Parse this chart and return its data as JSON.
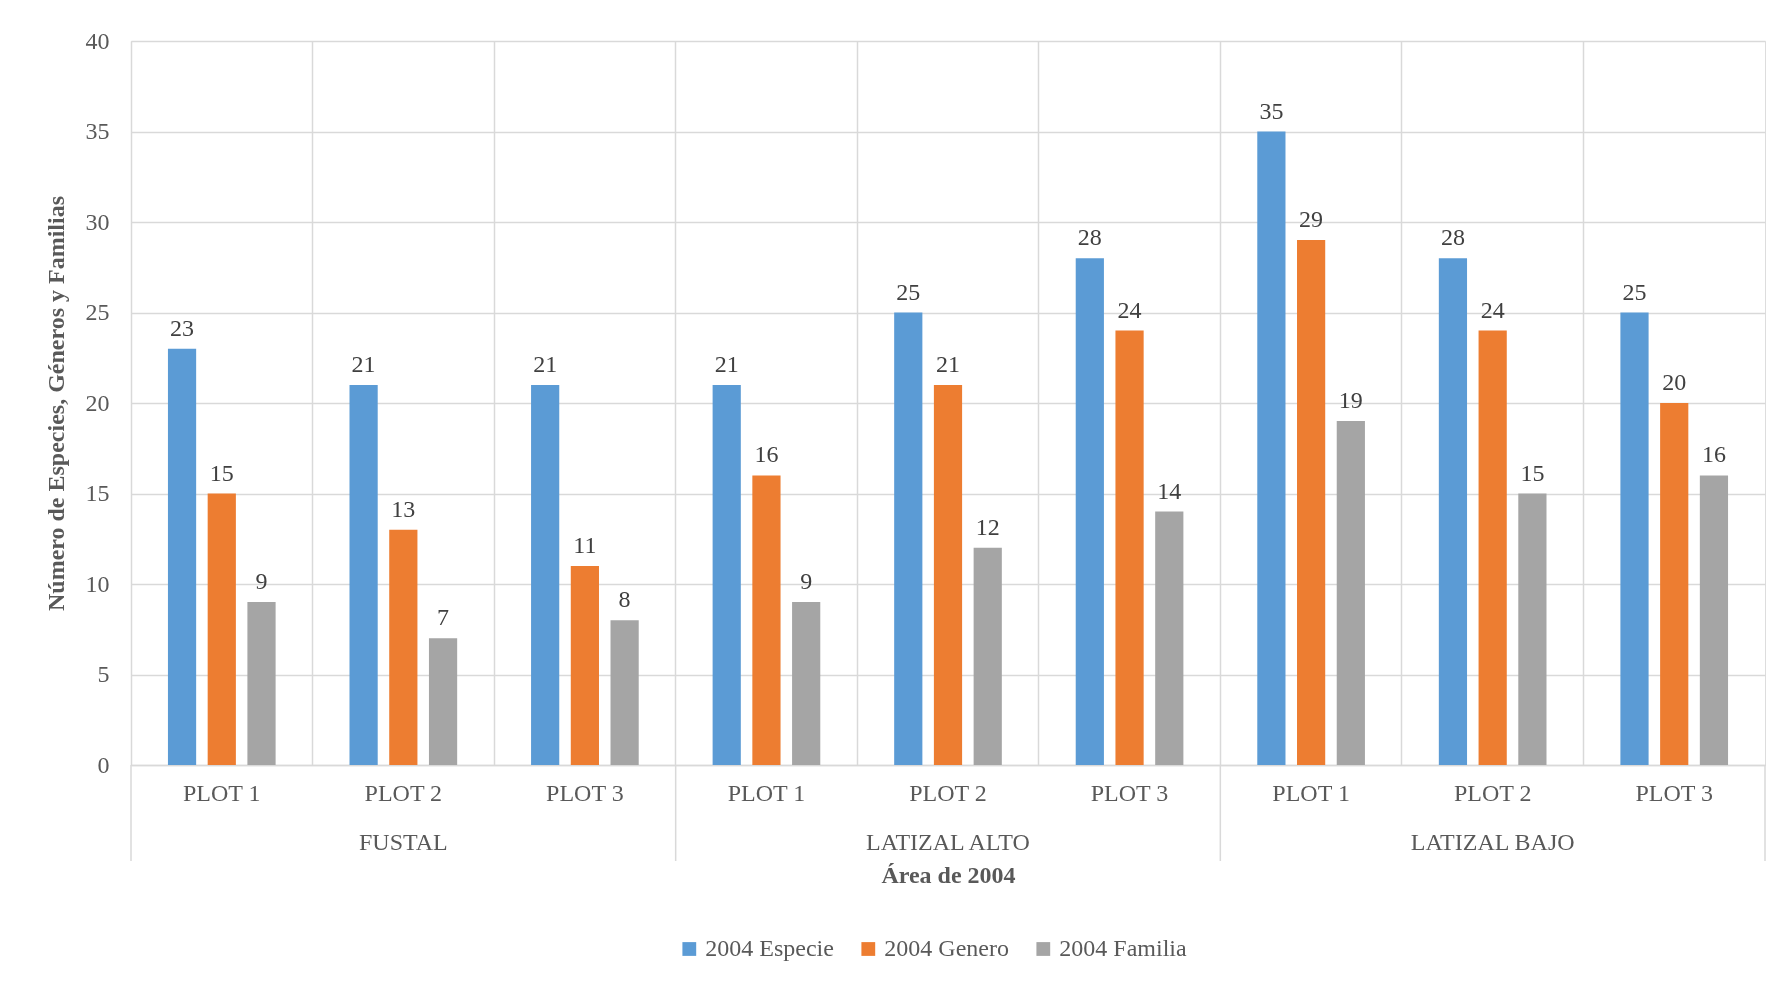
{
  "chart_data": {
    "type": "bar",
    "categories": [
      "PLOT 1",
      "PLOT 2",
      "PLOT 3",
      "PLOT 1",
      "PLOT 2",
      "PLOT 3",
      "PLOT 1",
      "PLOT 2",
      "PLOT 3"
    ],
    "series": [
      {
        "name": "2004 Especie",
        "color": "#5b9bd5",
        "values": [
          23,
          21,
          21,
          21,
          25,
          28,
          35,
          28,
          25
        ]
      },
      {
        "name": "2004 Genero",
        "color": "#ed7d31",
        "values": [
          15,
          13,
          11,
          16,
          21,
          24,
          29,
          24,
          20
        ]
      },
      {
        "name": "2004 Familia",
        "color": "#a5a5a5",
        "values": [
          9,
          7,
          8,
          9,
          12,
          14,
          19,
          15,
          16
        ]
      }
    ],
    "xlabel": "Área de 2004",
    "ylabel": "Número de Especies, Géneros y Familias",
    "ylim": [
      0,
      40
    ],
    "yticks": [
      0,
      5,
      10,
      15,
      20,
      25,
      30,
      35,
      40
    ],
    "grid": true,
    "legend": "bottom",
    "data_labels": true,
    "annotations": [
      "FUSTAL",
      "LATIZAL ALTO",
      "LATIZAL BAJO"
    ]
  }
}
